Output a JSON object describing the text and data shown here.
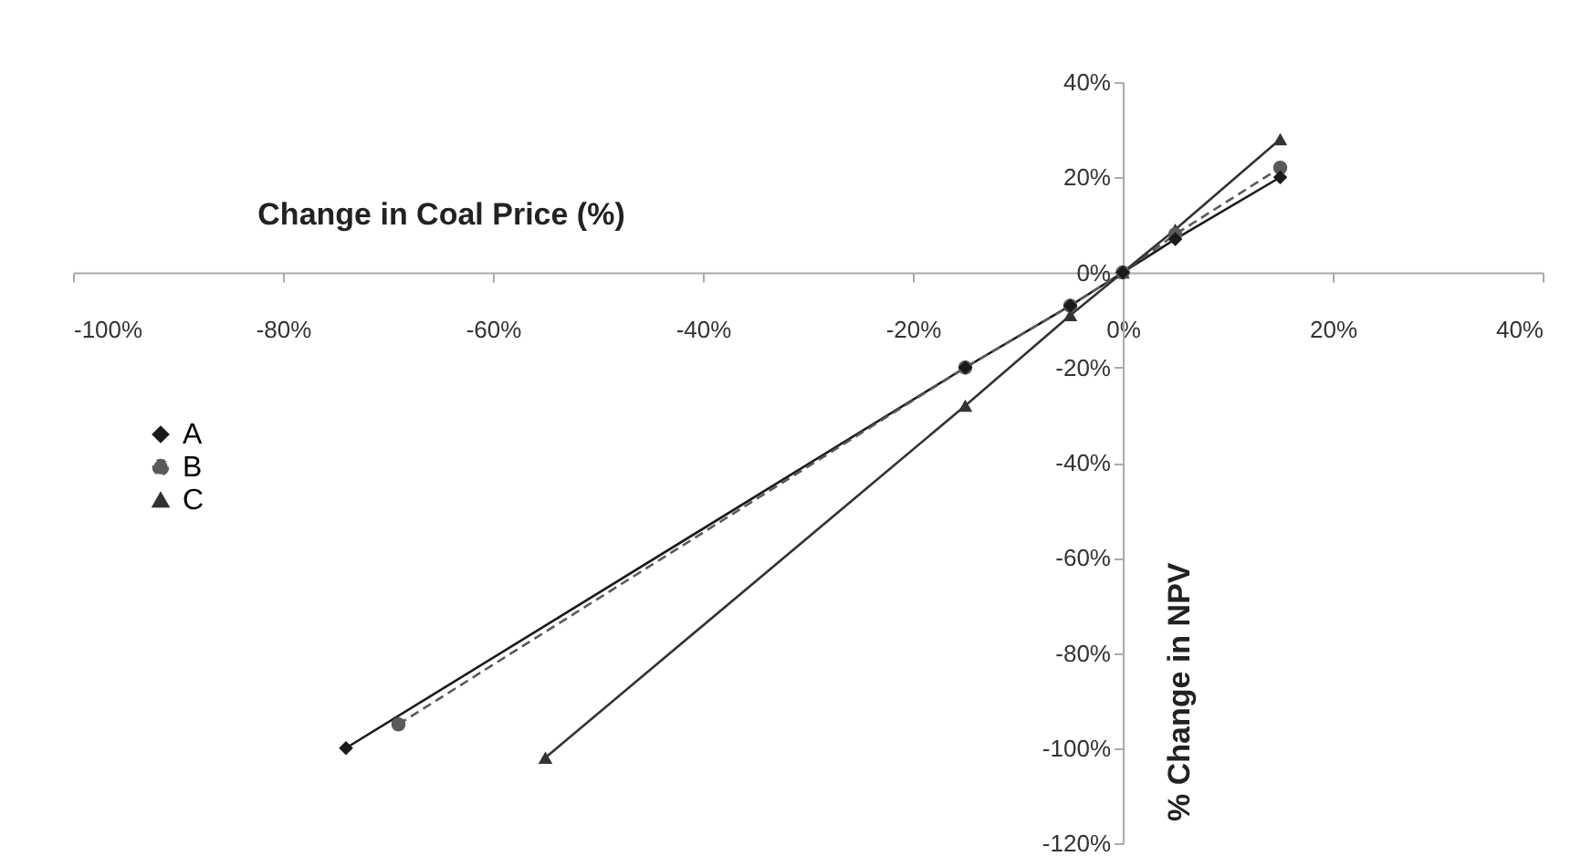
{
  "chart_data": {
    "type": "line",
    "xlabel": "Change in Coal Price (%)",
    "ylabel": "% Change in NPV",
    "series": [
      {
        "name": "A",
        "color": "#1a1a1a",
        "marker": "diamond",
        "line_style": "solid",
        "x": [
          -74,
          -15,
          -5,
          0,
          5,
          15
        ],
        "values": [
          -100,
          -20,
          -7,
          0,
          7,
          20
        ]
      },
      {
        "name": "B",
        "color": "#5a5a5a",
        "marker": "circle",
        "line_style": "dashed",
        "x": [
          -69,
          -15,
          -5,
          0,
          5,
          15
        ],
        "values": [
          -95,
          -20,
          -7,
          0,
          8,
          22
        ]
      },
      {
        "name": "C",
        "color": "#333333",
        "marker": "triangle",
        "line_style": "solid",
        "x": [
          -55,
          -15,
          -5,
          0,
          5,
          15
        ],
        "values": [
          -102,
          -28,
          -9,
          0,
          9,
          28
        ]
      }
    ],
    "xlim": [
      -100,
      40
    ],
    "ylim": [
      -120,
      40
    ],
    "xticks": [
      {
        "value": -100,
        "label": "-100%"
      },
      {
        "value": -80,
        "label": "-80%"
      },
      {
        "value": -60,
        "label": "-60%"
      },
      {
        "value": -40,
        "label": "-40%"
      },
      {
        "value": -20,
        "label": "-20%"
      },
      {
        "value": 0,
        "label": "0%"
      },
      {
        "value": 20,
        "label": "20%"
      },
      {
        "value": 40,
        "label": "40%"
      }
    ],
    "yticks": [
      {
        "value": -120,
        "label": "-120%"
      },
      {
        "value": -100,
        "label": "-100%"
      },
      {
        "value": -80,
        "label": "-80%"
      },
      {
        "value": -60,
        "label": "-60%"
      },
      {
        "value": -40,
        "label": "-40%"
      },
      {
        "value": -20,
        "label": "-20%"
      },
      {
        "value": 0,
        "label": "0%"
      },
      {
        "value": 20,
        "label": "20%"
      },
      {
        "value": 40,
        "label": "40%"
      }
    ],
    "grid": false,
    "legend": "left"
  }
}
